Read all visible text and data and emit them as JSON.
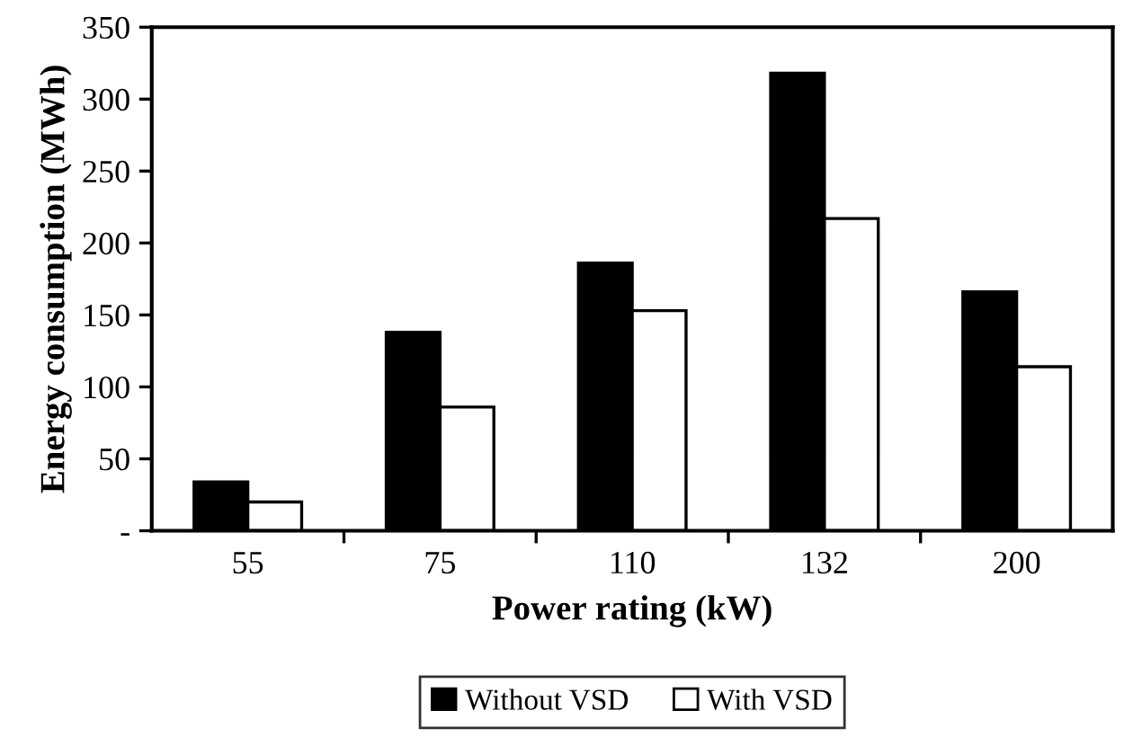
{
  "chart_data": {
    "type": "bar",
    "xlabel": "Power rating (kW)",
    "ylabel": "Energy consumption (MWh)",
    "categories": [
      "55",
      "75",
      "110",
      "132",
      "200"
    ],
    "series": [
      {
        "name": "Without VSD",
        "color": "#000000",
        "values": [
          34,
          138,
          186,
          318,
          166
        ]
      },
      {
        "name": "With VSD",
        "color": "#ffffff",
        "values": [
          20,
          86,
          153,
          217,
          114
        ]
      }
    ],
    "ylim": [
      0,
      350
    ],
    "yticks": [
      {
        "value": 0,
        "label": "-"
      },
      50,
      100,
      150,
      200,
      250,
      300,
      350
    ],
    "grid": false,
    "legend": "bottom"
  }
}
